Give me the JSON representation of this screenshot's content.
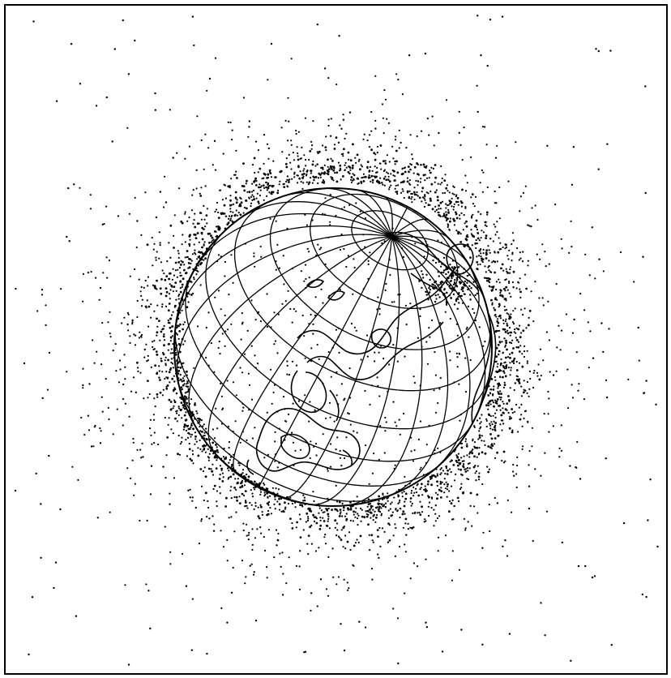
{
  "figure": {
    "background_color": "#ffffff",
    "ink_color": "#000000",
    "subject_icon": "globe-with-orbital-debris-icon",
    "debris": {
      "dense_shell_count": 2300,
      "near_space_count": 550,
      "outer_space_count": 240
    },
    "graticule": {
      "meridian_step_deg": 15,
      "parallel_step_deg": 15
    }
  }
}
